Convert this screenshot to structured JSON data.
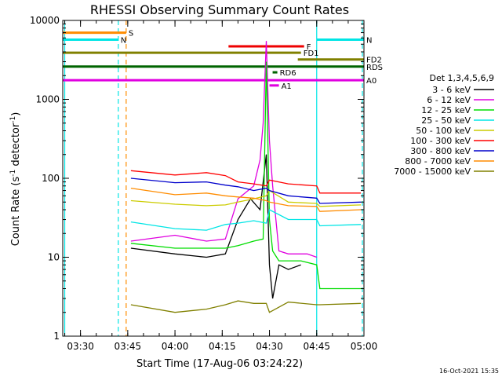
{
  "chart_data": {
    "type": "line",
    "title": "RHESSI Observing Summary Count Rates",
    "xlabel": "Start Time (17-Aug-06 03:24:22)",
    "ylabel_main": "Count Rate (s",
    "ylabel_sup1": "-1",
    "ylabel_mid": " detector",
    "ylabel_sup2": "-1",
    "ylabel_end": ")",
    "footer": "16-Oct-2021 15:35",
    "y_scale": "log",
    "xlim": [
      "03:24:22",
      "05:00:00"
    ],
    "ylim": [
      1,
      10000
    ],
    "x_ticks": [
      "03:30",
      "03:45",
      "04:00",
      "04:15",
      "04:30",
      "04:45",
      "05:00"
    ],
    "y_ticks": [
      "1",
      "10",
      "100",
      "1000",
      "10000"
    ],
    "legend_title": "Det 1,3,4,5,6,9",
    "legend_placement": "right",
    "series": [
      {
        "name": "3 - 6 keV",
        "color": "#000000",
        "x": [
          "03:46",
          "04:00",
          "04:10",
          "04:16",
          "04:20",
          "04:24",
          "04:27",
          "04:29",
          "04:30",
          "04:31",
          "04:33",
          "04:36",
          "04:40"
        ],
        "y": [
          13,
          11,
          10,
          11,
          30,
          55,
          40,
          200,
          8,
          3,
          8,
          7,
          8
        ]
      },
      {
        "name": "6 - 12 keV",
        "color": "#e000e0",
        "x": [
          "03:46",
          "04:00",
          "04:10",
          "04:16",
          "04:20",
          "04:25",
          "04:27",
          "04:28",
          "04:29",
          "04:30",
          "04:31",
          "04:33",
          "04:36",
          "04:42",
          "04:45"
        ],
        "y": [
          16,
          19,
          16,
          17,
          55,
          80,
          170,
          500,
          5500,
          300,
          80,
          12,
          11,
          11,
          10
        ]
      },
      {
        "name": "12 - 25 keV",
        "color": "#00dd00",
        "x": [
          "03:46",
          "04:00",
          "04:10",
          "04:16",
          "04:20",
          "04:25",
          "04:28",
          "04:29",
          "04:30",
          "04:31",
          "04:33",
          "04:40",
          "04:45",
          "04:46",
          "05:00"
        ],
        "y": [
          15,
          13,
          13,
          13,
          14,
          16,
          17,
          3000,
          30,
          12,
          9,
          9,
          8,
          4,
          4
        ]
      },
      {
        "name": "25 - 50 keV",
        "color": "#00e5e5",
        "x": [
          "03:46",
          "04:00",
          "04:10",
          "04:16",
          "04:20",
          "04:25",
          "04:29",
          "04:30",
          "04:36",
          "04:40",
          "04:45",
          "04:46",
          "04:59"
        ],
        "y": [
          28,
          23,
          22,
          26,
          27,
          29,
          27,
          40,
          30,
          30,
          30,
          25,
          26
        ]
      },
      {
        "name": "50 - 100 keV",
        "color": "#cccc00",
        "x": [
          "03:46",
          "04:00",
          "04:10",
          "04:16",
          "04:20",
          "04:25",
          "04:29",
          "04:30",
          "04:36",
          "04:45",
          "04:46",
          "04:59"
        ],
        "y": [
          52,
          47,
          45,
          46,
          50,
          55,
          60,
          70,
          50,
          48,
          44,
          46
        ]
      },
      {
        "name": "100 - 300 keV",
        "color": "#ff0000",
        "x": [
          "03:46",
          "04:00",
          "04:10",
          "04:16",
          "04:20",
          "04:25",
          "04:29",
          "04:30",
          "04:36",
          "04:45",
          "04:46",
          "04:59"
        ],
        "y": [
          125,
          110,
          118,
          108,
          90,
          85,
          80,
          95,
          85,
          80,
          65,
          65
        ]
      },
      {
        "name": "300 - 800 keV",
        "color": "#0000cc",
        "x": [
          "03:46",
          "04:00",
          "04:10",
          "04:16",
          "04:20",
          "04:25",
          "04:29",
          "04:30",
          "04:36",
          "04:45",
          "04:46",
          "04:59"
        ],
        "y": [
          100,
          88,
          90,
          82,
          78,
          70,
          75,
          70,
          60,
          56,
          48,
          50
        ]
      },
      {
        "name": "800 - 7000 keV",
        "color": "#ff8c00",
        "x": [
          "03:46",
          "04:00",
          "04:10",
          "04:16",
          "04:20",
          "04:25",
          "04:29",
          "04:30",
          "04:36",
          "04:45",
          "04:46",
          "04:59"
        ],
        "y": [
          75,
          62,
          65,
          60,
          58,
          56,
          52,
          50,
          45,
          44,
          38,
          40
        ]
      },
      {
        "name": "7000 - 15000 keV",
        "color": "#808000",
        "x": [
          "03:46",
          "04:00",
          "04:10",
          "04:16",
          "04:20",
          "04:25",
          "04:29",
          "04:30",
          "04:36",
          "04:45",
          "04:46",
          "04:59"
        ],
        "y": [
          2.5,
          2.0,
          2.2,
          2.5,
          2.8,
          2.6,
          2.6,
          2.0,
          2.7,
          2.5,
          2.5,
          2.6
        ]
      }
    ],
    "vertical_markers": [
      {
        "time": "03:25:00",
        "color": "#00e5e5",
        "style": "solid"
      },
      {
        "time": "03:42:00",
        "color": "#00e5e5",
        "style": "dashed"
      },
      {
        "time": "03:44:30",
        "color": "#ff8c00",
        "style": "dashed"
      },
      {
        "time": "04:45:00",
        "color": "#00e5e5",
        "style": "solid"
      },
      {
        "time": "04:59:30",
        "color": "#00e5e5",
        "style": "dashed"
      }
    ],
    "flag_bars": [
      {
        "label": "S",
        "color": "#ff8c00",
        "start": "03:24:22",
        "end": "03:44:30",
        "level": 7000
      },
      {
        "label": "N",
        "color": "#00e5e5",
        "start": "03:24:22",
        "end": "03:42:00",
        "level": 5700
      },
      {
        "label": "N",
        "color": "#00e5e5",
        "start": "04:45:00",
        "end": "05:00:00",
        "level": 5700
      },
      {
        "label": "F",
        "color": "#ee0000",
        "start": "04:17:00",
        "end": "04:41:00",
        "level": 4700
      },
      {
        "label": "FD1",
        "color": "#808000",
        "start": "03:24:22",
        "end": "04:40:00",
        "level": 3900
      },
      {
        "label": "FD2",
        "color": "#808000",
        "start": "04:39:00",
        "end": "05:00:00",
        "level": 3200
      },
      {
        "label": "RDS",
        "color": "#006400",
        "start": "03:24:22",
        "end": "05:00:00",
        "level": 2600
      },
      {
        "label": "RD6",
        "color": "#006400",
        "start": "04:31:00",
        "end": "04:32:30",
        "level": 2200
      },
      {
        "label": "A0",
        "color": "#e000e0",
        "start": "03:24:22",
        "end": "05:00:00",
        "level": 1750
      },
      {
        "label": "A1",
        "color": "#e000e0",
        "start": "04:30:00",
        "end": "04:33:00",
        "level": 1500
      }
    ]
  }
}
